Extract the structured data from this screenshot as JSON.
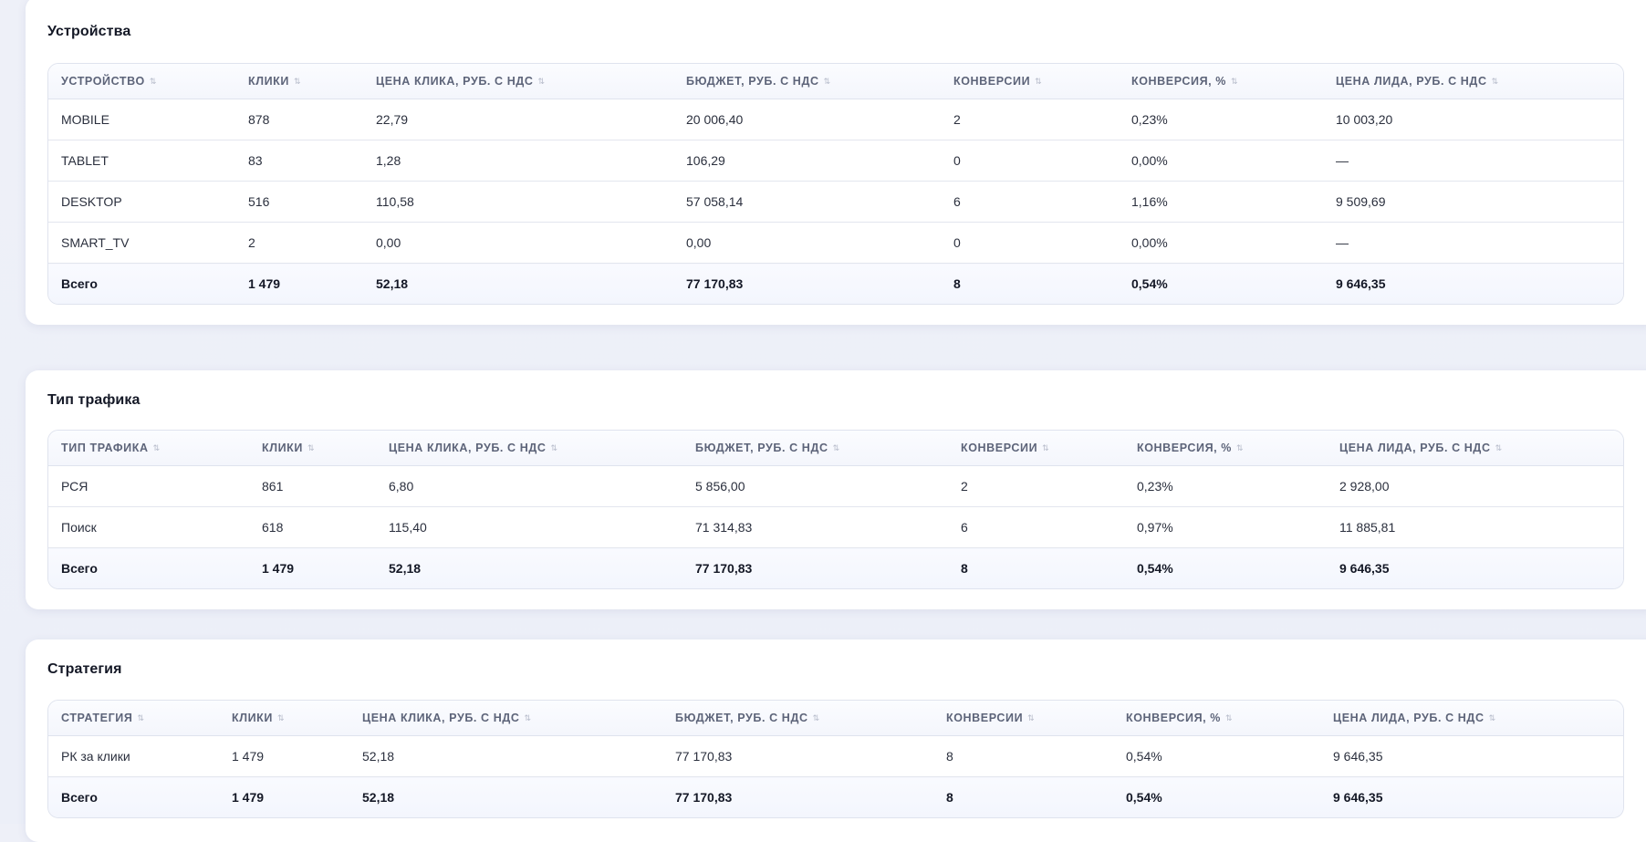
{
  "devices": {
    "title": "Устройства",
    "headers": [
      "Устройство",
      "Клики",
      "Цена клика, руб. с НДС",
      "Бюджет, руб. с НДС",
      "Конверсии",
      "Конверсия, %",
      "Цена лида, руб. с НДС"
    ],
    "rows": [
      [
        "MOBILE",
        "878",
        "22,79",
        "20 006,40",
        "2",
        "0,23%",
        "10 003,20"
      ],
      [
        "TABLET",
        "83",
        "1,28",
        "106,29",
        "0",
        "0,00%",
        "—"
      ],
      [
        "DESKTOP",
        "516",
        "110,58",
        "57 058,14",
        "6",
        "1,16%",
        "9 509,69"
      ],
      [
        "SMART_TV",
        "2",
        "0,00",
        "0,00",
        "0",
        "0,00%",
        "—"
      ]
    ],
    "total": [
      "Всего",
      "1 479",
      "52,18",
      "77 170,83",
      "8",
      "0,54%",
      "9 646,35"
    ]
  },
  "traffic": {
    "title": "Тип трафика",
    "headers": [
      "Тип трафика",
      "Клики",
      "Цена клика, руб. с НДС",
      "Бюджет, руб. с НДС",
      "Конверсии",
      "Конверсия, %",
      "Цена лида, руб. с НДС"
    ],
    "rows": [
      [
        "РСЯ",
        "861",
        "6,80",
        "5 856,00",
        "2",
        "0,23%",
        "2 928,00"
      ],
      [
        "Поиск",
        "618",
        "115,40",
        "71 314,83",
        "6",
        "0,97%",
        "11 885,81"
      ]
    ],
    "total": [
      "Всего",
      "1 479",
      "52,18",
      "77 170,83",
      "8",
      "0,54%",
      "9 646,35"
    ]
  },
  "strategy": {
    "title": "Стратегия",
    "headers": [
      "Стратегия",
      "Клики",
      "Цена клика, руб. с НДС",
      "Бюджет, руб. с НДС",
      "Конверсии",
      "Конверсия, %",
      "Цена лида, руб. с НДС"
    ],
    "rows": [
      [
        "РК за клики",
        "1 479",
        "52,18",
        "77 170,83",
        "8",
        "0,54%",
        "9 646,35"
      ]
    ],
    "total": [
      "Всего",
      "1 479",
      "52,18",
      "77 170,83",
      "8",
      "0,54%",
      "9 646,35"
    ]
  },
  "icons": {
    "sort": "sort-arrows-icon",
    "sort_glyph": "⇅"
  }
}
